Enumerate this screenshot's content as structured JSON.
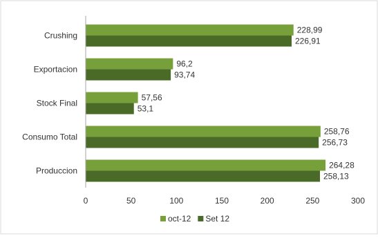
{
  "chart_data": {
    "type": "bar",
    "orientation": "horizontal",
    "title": "",
    "xlabel": "",
    "ylabel": "",
    "categories": [
      "Crushing",
      "Exportacion",
      "Stock Final",
      "Consumo Total",
      "Produccion"
    ],
    "series": [
      {
        "name": "oct-12",
        "color": "#77a03a",
        "values": [
          228.99,
          96.2,
          57.56,
          258.76,
          264.28
        ],
        "labels": [
          "228,99",
          "96,2",
          "57,56",
          "258,76",
          "264,28"
        ]
      },
      {
        "name": "Set 12",
        "color": "#4a6b27",
        "values": [
          226.91,
          93.74,
          53.1,
          256.73,
          258.13
        ],
        "labels": [
          "226,91",
          "93,74",
          "53,1",
          "256,73",
          "258,13"
        ]
      }
    ],
    "xlim": [
      0,
      300
    ],
    "xticks": [
      0,
      50,
      100,
      150,
      200,
      250,
      300
    ],
    "xtick_labels": [
      "0",
      "50",
      "100",
      "150",
      "200",
      "250",
      "300"
    ],
    "grid": false,
    "legend_position": "bottom",
    "colors": {
      "border": "#d9d9d9",
      "axis": "#a6a6a6"
    }
  }
}
